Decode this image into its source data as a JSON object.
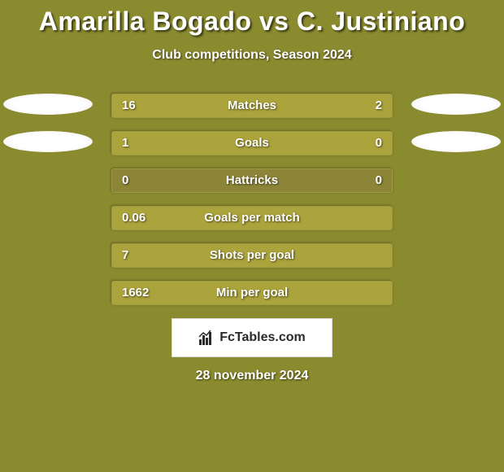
{
  "title": "Amarilla Bogado vs C. Justiniano",
  "subtitle": "Club competitions, Season 2024",
  "date_line": "28 november 2024",
  "logo_text": "FcTables.com",
  "colors": {
    "page_bg": "#8a8a2f",
    "bar_track": "#8c8538",
    "bar_fill": "#aba33c",
    "bar_border": "#a09a40",
    "text": "#ffffff",
    "logo_bg": "#ffffff",
    "logo_text": "#2a2a2a"
  },
  "avatar_rows": 2,
  "stats": [
    {
      "label": "Matches",
      "left_val": "16",
      "right_val": "2",
      "left_pct": 78,
      "right_pct": 22
    },
    {
      "label": "Goals",
      "left_val": "1",
      "right_val": "0",
      "left_pct": 80,
      "right_pct": 20
    },
    {
      "label": "Hattricks",
      "left_val": "0",
      "right_val": "0",
      "left_pct": 0,
      "right_pct": 0
    },
    {
      "label": "Goals per match",
      "left_val": "0.06",
      "right_val": "",
      "left_pct": 100,
      "right_pct": 0
    },
    {
      "label": "Shots per goal",
      "left_val": "7",
      "right_val": "",
      "left_pct": 100,
      "right_pct": 0
    },
    {
      "label": "Min per goal",
      "left_val": "1662",
      "right_val": "",
      "left_pct": 100,
      "right_pct": 0
    }
  ]
}
